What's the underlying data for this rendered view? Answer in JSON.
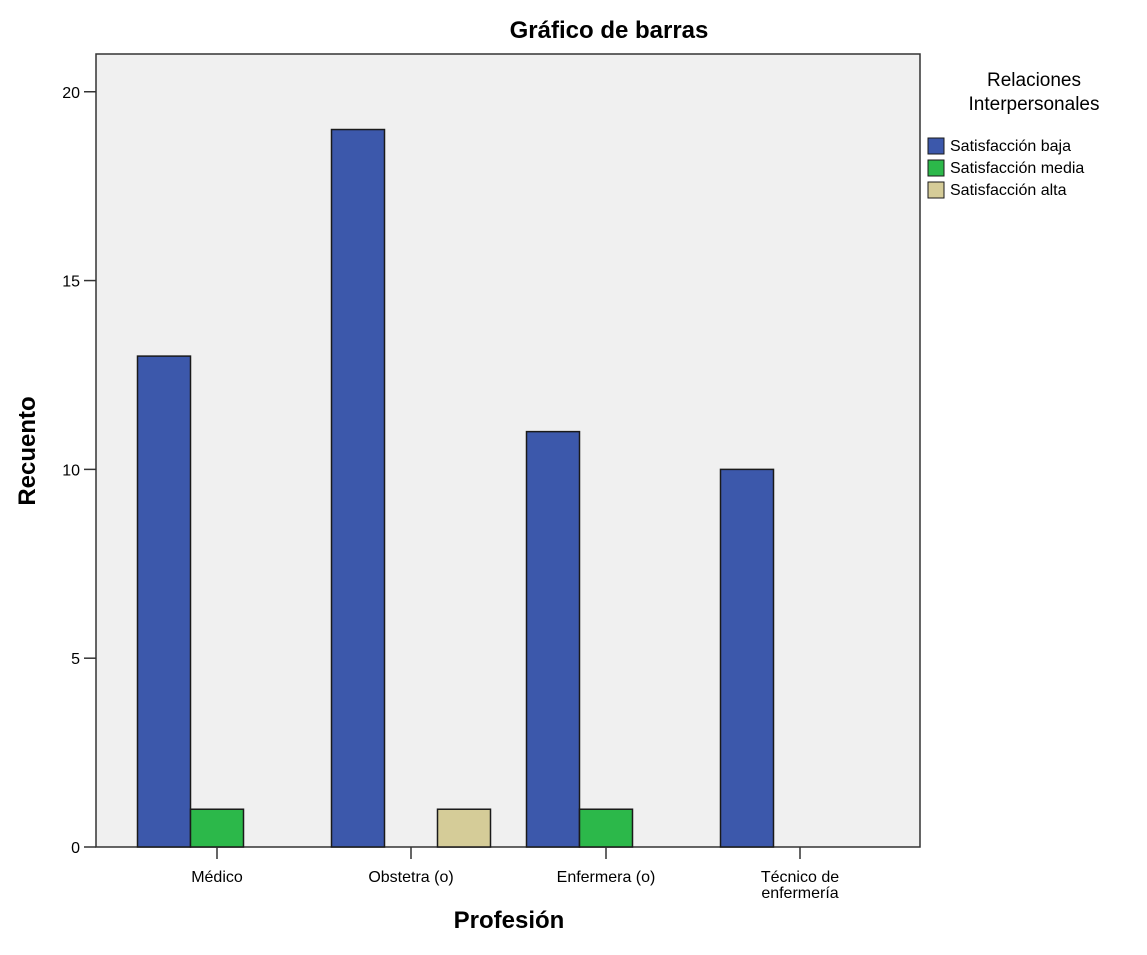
{
  "chart_data": {
    "type": "bar",
    "title": "Gráfico de barras",
    "xlabel": "Profesión",
    "ylabel": "Recuento",
    "categories": [
      [
        "Médico"
      ],
      [
        "Obstetra (o)"
      ],
      [
        "Enfermera (o)"
      ],
      [
        "Técnico de",
        "enfermería"
      ]
    ],
    "series": [
      {
        "name": "Satisfacción baja",
        "color": "#3c58ab",
        "values": [
          13,
          19,
          11,
          10
        ]
      },
      {
        "name": "Satisfacción media",
        "color": "#2cb84a",
        "values": [
          1,
          0,
          1,
          0
        ]
      },
      {
        "name": "Satisfacción alta",
        "color": "#d5cc98",
        "values": [
          0,
          1,
          0,
          0
        ]
      }
    ],
    "ylim": [
      0,
      21
    ],
    "yticks": [
      0,
      5,
      10,
      15,
      20
    ],
    "legend": {
      "title": [
        "Relaciones",
        "Interpersonales"
      ],
      "position": "right"
    },
    "grid": false,
    "plot_background": "#f0f0f0"
  }
}
